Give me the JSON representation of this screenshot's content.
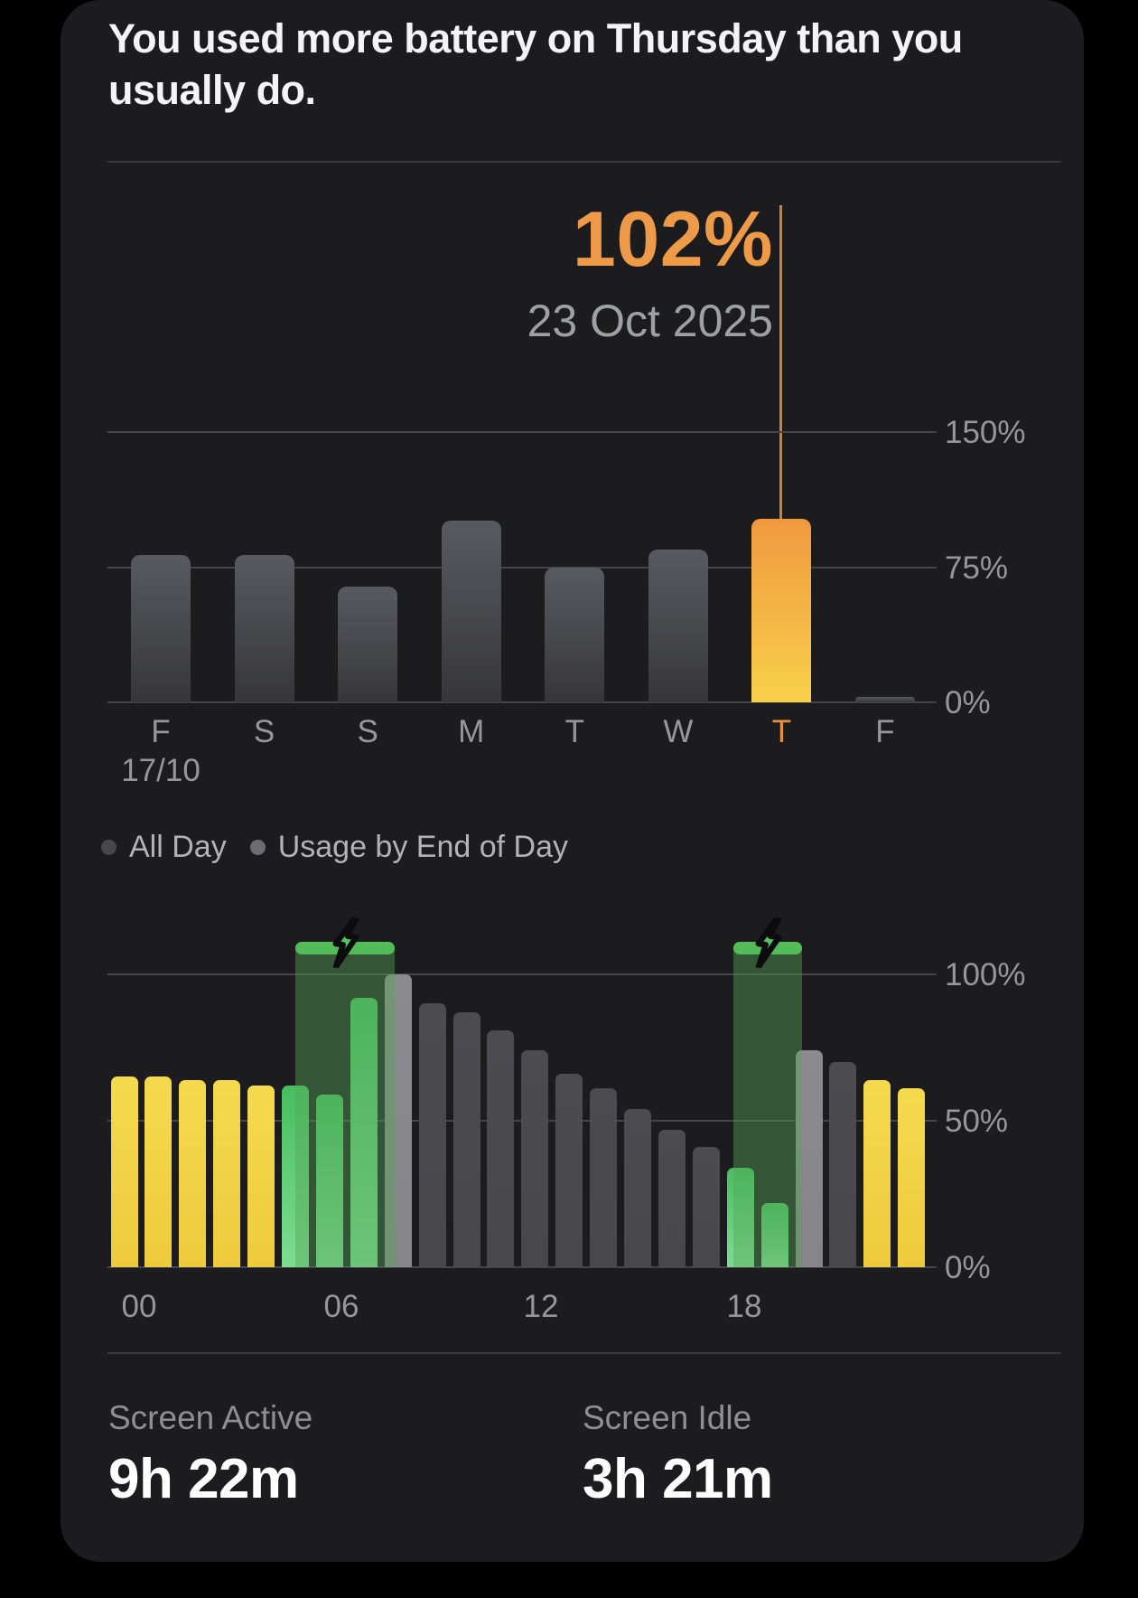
{
  "title": "You used more battery on Thursday than you usually do.",
  "chart_data": [
    {
      "name": "weekly_battery_usage",
      "type": "bar",
      "categories": [
        "F",
        "S",
        "S",
        "M",
        "T",
        "W",
        "T",
        "F"
      ],
      "first_category_sub_label": "17/10",
      "values": [
        82,
        82,
        64,
        101,
        75,
        85,
        102,
        3
      ],
      "unit": "%",
      "highlight_index": 6,
      "selected_value": "102%",
      "selected_date": "23 Oct 2025",
      "y_ticks": [
        "150%",
        "75%",
        "0%"
      ],
      "y_tick_values": [
        150,
        75,
        0
      ],
      "ylim": [
        0,
        160
      ],
      "grid": "on",
      "legend": [
        "All Day",
        "Usage by End of Day"
      ],
      "legend_position": "below-left"
    },
    {
      "name": "hourly_battery_usage",
      "type": "bar",
      "x_ticks": [
        "00",
        "06",
        "12",
        "18"
      ],
      "x_tick_hours": [
        0,
        6,
        12,
        18
      ],
      "values": [
        65,
        65,
        64,
        64,
        62,
        62,
        59,
        92,
        100,
        90,
        87,
        81,
        74,
        66,
        61,
        54,
        47,
        41,
        34,
        22,
        74,
        70,
        64,
        61
      ],
      "kinds": [
        "yellow",
        "yellow",
        "yellow",
        "yellow",
        "yellow",
        "green",
        "green",
        "green",
        "lightgray",
        "gray",
        "gray",
        "gray",
        "gray",
        "gray",
        "gray",
        "gray",
        "gray",
        "gray",
        "green",
        "green",
        "lightgray",
        "gray",
        "yellow",
        "yellow"
      ],
      "unit": "%",
      "y_ticks": [
        "100%",
        "50%",
        "0%"
      ],
      "y_tick_values": [
        100,
        50,
        0
      ],
      "ylim": [
        0,
        112
      ],
      "grid": "on",
      "charging_sessions": [
        {
          "start_hour": 5.4,
          "end_hour": 8.3,
          "level_pct": 111
        },
        {
          "start_hour": 18.2,
          "end_hour": 20.2,
          "level_pct": 111
        }
      ]
    }
  ],
  "stats": [
    {
      "label": "Screen Active",
      "value": "9h 22m"
    },
    {
      "label": "Screen Idle",
      "value": "3h 21m"
    }
  ],
  "colors": {
    "accent_orange": "#ee9b49",
    "indicator_line": "#c8823b",
    "orange_bar_top": "#f0993f",
    "orange_bar_bottom": "#f8d14b",
    "gray_bar_top": "#595a60",
    "gray_bar_bottom": "#36363a",
    "hour_gray": "#48484c",
    "hour_lightgray": "#85858a",
    "yellow_top": "#f5da4e",
    "yellow_bottom": "#edcb3c",
    "green_top": "#48be5f",
    "green_bottom": "#7edc92",
    "charge_cap": "#53bc58",
    "charge_overlay": "rgba(85,165,88,0.42)",
    "bolt_fill": "#52c463",
    "bolt_outline": "#0c0c0e",
    "axis_label": "#96969b",
    "day_highlight": "#e5913c",
    "grid_line": "#44444a"
  }
}
